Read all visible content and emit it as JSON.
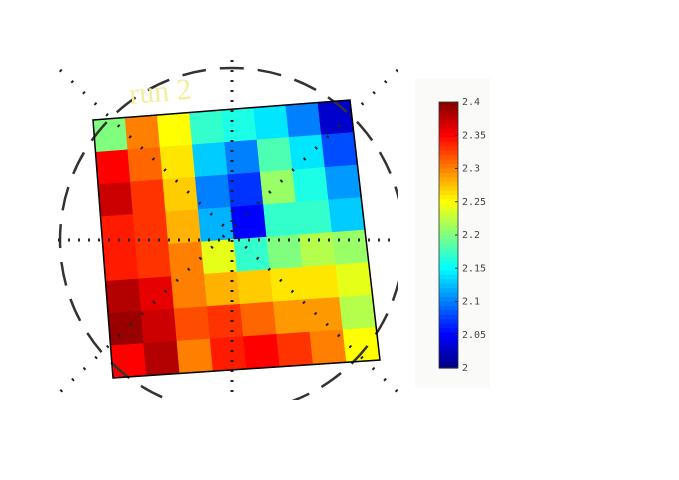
{
  "chart_data": {
    "type": "heatmap",
    "title": "run 2",
    "colormap": "jet",
    "z": [
      [
        2.2,
        2.3,
        2.25,
        2.17,
        2.16,
        2.14,
        2.1,
        2.03
      ],
      [
        2.35,
        2.31,
        2.26,
        2.13,
        2.1,
        2.18,
        2.14,
        2.08
      ],
      [
        2.37,
        2.33,
        2.27,
        2.1,
        2.07,
        2.21,
        2.16,
        2.11
      ],
      [
        2.34,
        2.33,
        2.28,
        2.12,
        2.05,
        2.17,
        2.17,
        2.13
      ],
      [
        2.34,
        2.33,
        2.3,
        2.24,
        2.17,
        2.2,
        2.22,
        2.21
      ],
      [
        2.38,
        2.36,
        2.3,
        2.28,
        2.27,
        2.26,
        2.26,
        2.24
      ],
      [
        2.39,
        2.37,
        2.32,
        2.33,
        2.31,
        2.29,
        2.29,
        2.22
      ],
      [
        2.35,
        2.38,
        2.3,
        2.34,
        2.35,
        2.33,
        2.3,
        2.25
      ]
    ],
    "zlim": [
      2,
      2.4
    ],
    "zticks": [
      2,
      2.05,
      2.1,
      2.15,
      2.2,
      2.25,
      2.3,
      2.35,
      2.4
    ]
  }
}
